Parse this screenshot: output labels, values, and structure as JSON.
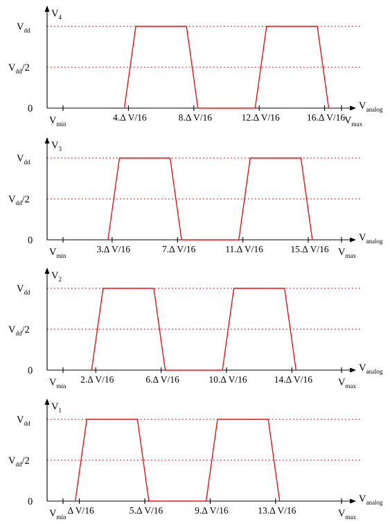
{
  "colors": {
    "waveform": "#e8141c",
    "dotted": "#e8141c",
    "axis": "#000000"
  },
  "x_axis": {
    "label_main": "V",
    "label_sub": "analog",
    "min_main": "V",
    "min_sub": "min",
    "max_main": "V",
    "max_sub": "max"
  },
  "y_levels": {
    "vdd_main": "V",
    "vdd_sub": "dd",
    "half_main": "V",
    "half_sub": "dd",
    "half_tail": "/2",
    "zero": "0"
  },
  "chart_data": [
    {
      "type": "line",
      "y_label_main": "V",
      "y_label_sub": "4",
      "ticks": [
        "4.Δ V/16",
        "8.Δ V/16",
        "12.Δ V/16",
        "16.Δ V/16"
      ],
      "x": [
        3.75,
        4.45,
        7.55,
        8.25,
        11.75,
        12.45,
        15.55,
        16.25
      ],
      "y": [
        0,
        1,
        1,
        0,
        0,
        1,
        1,
        0
      ]
    },
    {
      "type": "line",
      "y_label_main": "V",
      "y_label_sub": "3",
      "ticks": [
        "3.Δ V/16",
        "7.Δ V/16",
        "11.Δ V/16",
        "15.Δ V/16"
      ],
      "x": [
        2.75,
        3.45,
        6.55,
        7.25,
        10.75,
        11.45,
        14.55,
        15.25
      ],
      "y": [
        0,
        1,
        1,
        0,
        0,
        1,
        1,
        0
      ]
    },
    {
      "type": "line",
      "y_label_main": "V",
      "y_label_sub": "2",
      "ticks": [
        "2.Δ V/16",
        "6.Δ V/16",
        "10.Δ V/16",
        "14.Δ V/16"
      ],
      "x": [
        1.75,
        2.45,
        5.55,
        6.25,
        9.75,
        10.45,
        13.55,
        14.25
      ],
      "y": [
        0,
        1,
        1,
        0,
        0,
        1,
        1,
        0
      ]
    },
    {
      "type": "line",
      "y_label_main": "V",
      "y_label_sub": "1",
      "ticks": [
        "Δ V/16",
        "5.Δ V/16",
        "9.Δ V/16",
        "13.Δ V/16"
      ],
      "x": [
        0.75,
        1.45,
        4.55,
        5.25,
        8.75,
        9.45,
        12.55,
        13.25
      ],
      "y": [
        0,
        1,
        1,
        0,
        0,
        1,
        1,
        0
      ]
    }
  ]
}
